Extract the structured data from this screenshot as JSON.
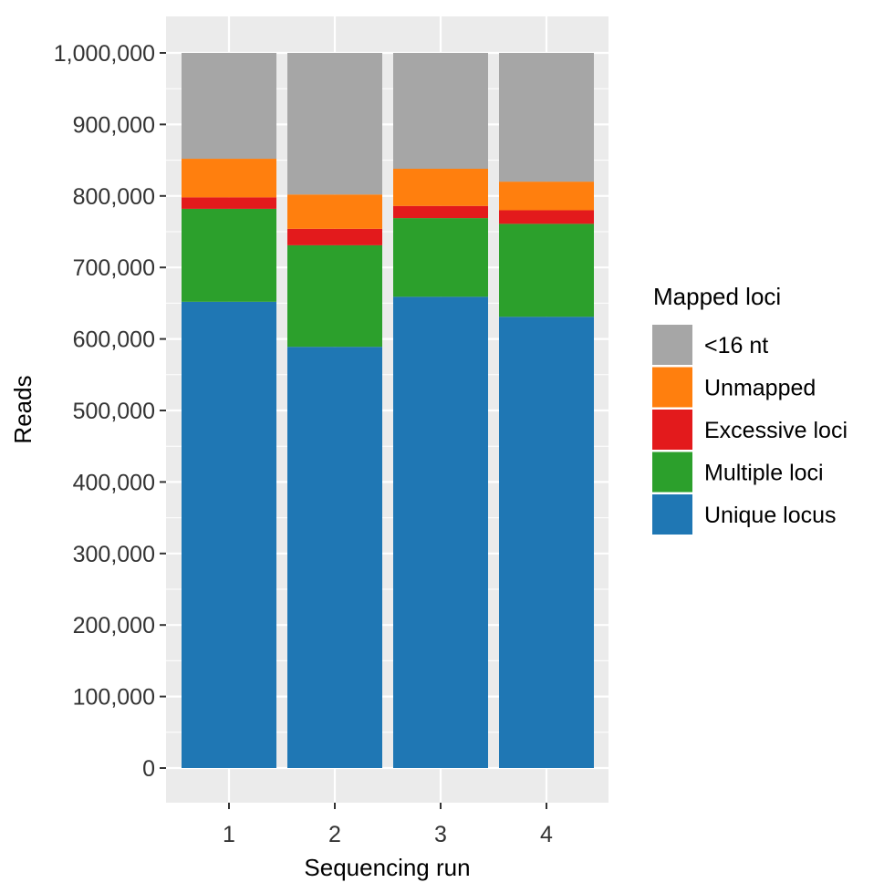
{
  "chart_data": {
    "type": "bar",
    "stacked": true,
    "categories": [
      "1",
      "2",
      "3",
      "4"
    ],
    "series": [
      {
        "name": "Unique locus",
        "color": "#1f77b4",
        "values": [
          652000,
          589000,
          659000,
          631000
        ]
      },
      {
        "name": "Multiple loci",
        "color": "#2ca02c",
        "values": [
          130000,
          142000,
          110000,
          130000
        ]
      },
      {
        "name": "Excessive loci",
        "color": "#e31a1c",
        "values": [
          16000,
          23000,
          17000,
          19000
        ]
      },
      {
        "name": "Unmapped",
        "color": "#ff7f0e",
        "values": [
          54000,
          48000,
          52000,
          40000
        ]
      },
      {
        "name": "<16 nt",
        "color": "#a6a6a6",
        "values": [
          148000,
          198000,
          162000,
          180000
        ]
      }
    ],
    "xlabel": "Sequencing run",
    "ylabel": "Reads",
    "ylim": [
      0,
      1000000
    ],
    "yticks": [
      0,
      100000,
      200000,
      300000,
      400000,
      500000,
      600000,
      700000,
      800000,
      900000,
      1000000
    ],
    "ytick_labels": [
      "0",
      "100,000",
      "200,000",
      "300,000",
      "400,000",
      "500,000",
      "600,000",
      "700,000",
      "800,000",
      "900,000",
      "1,000,000"
    ],
    "legend": {
      "title": "Mapped loci",
      "position": "right",
      "order": [
        "<16 nt",
        "Unmapped",
        "Excessive loci",
        "Multiple loci",
        "Unique locus"
      ]
    },
    "grid": true,
    "panel_background": "#ebebeb",
    "grid_color": "#ffffff"
  }
}
